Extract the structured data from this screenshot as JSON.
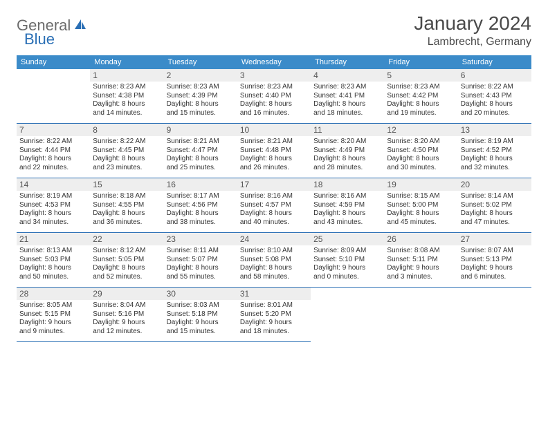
{
  "logo": {
    "part1": "General",
    "part2": "Blue"
  },
  "title": "January 2024",
  "location": "Lambrecht, Germany",
  "colors": {
    "headerBg": "#3b8bc9",
    "headerText": "#ffffff",
    "border": "#2a6fb5",
    "shaded": "#eeeeee",
    "logoGray": "#6b6b6b",
    "logoBlue": "#2a6fb5"
  },
  "weekdays": [
    "Sunday",
    "Monday",
    "Tuesday",
    "Wednesday",
    "Thursday",
    "Friday",
    "Saturday"
  ],
  "weeks": [
    [
      null,
      {
        "n": "1",
        "sr": "Sunrise: 8:23 AM",
        "ss": "Sunset: 4:38 PM",
        "d1": "Daylight: 8 hours",
        "d2": "and 14 minutes."
      },
      {
        "n": "2",
        "sr": "Sunrise: 8:23 AM",
        "ss": "Sunset: 4:39 PM",
        "d1": "Daylight: 8 hours",
        "d2": "and 15 minutes."
      },
      {
        "n": "3",
        "sr": "Sunrise: 8:23 AM",
        "ss": "Sunset: 4:40 PM",
        "d1": "Daylight: 8 hours",
        "d2": "and 16 minutes."
      },
      {
        "n": "4",
        "sr": "Sunrise: 8:23 AM",
        "ss": "Sunset: 4:41 PM",
        "d1": "Daylight: 8 hours",
        "d2": "and 18 minutes."
      },
      {
        "n": "5",
        "sr": "Sunrise: 8:23 AM",
        "ss": "Sunset: 4:42 PM",
        "d1": "Daylight: 8 hours",
        "d2": "and 19 minutes."
      },
      {
        "n": "6",
        "sr": "Sunrise: 8:22 AM",
        "ss": "Sunset: 4:43 PM",
        "d1": "Daylight: 8 hours",
        "d2": "and 20 minutes."
      }
    ],
    [
      {
        "n": "7",
        "sr": "Sunrise: 8:22 AM",
        "ss": "Sunset: 4:44 PM",
        "d1": "Daylight: 8 hours",
        "d2": "and 22 minutes."
      },
      {
        "n": "8",
        "sr": "Sunrise: 8:22 AM",
        "ss": "Sunset: 4:45 PM",
        "d1": "Daylight: 8 hours",
        "d2": "and 23 minutes."
      },
      {
        "n": "9",
        "sr": "Sunrise: 8:21 AM",
        "ss": "Sunset: 4:47 PM",
        "d1": "Daylight: 8 hours",
        "d2": "and 25 minutes."
      },
      {
        "n": "10",
        "sr": "Sunrise: 8:21 AM",
        "ss": "Sunset: 4:48 PM",
        "d1": "Daylight: 8 hours",
        "d2": "and 26 minutes."
      },
      {
        "n": "11",
        "sr": "Sunrise: 8:20 AM",
        "ss": "Sunset: 4:49 PM",
        "d1": "Daylight: 8 hours",
        "d2": "and 28 minutes."
      },
      {
        "n": "12",
        "sr": "Sunrise: 8:20 AM",
        "ss": "Sunset: 4:50 PM",
        "d1": "Daylight: 8 hours",
        "d2": "and 30 minutes."
      },
      {
        "n": "13",
        "sr": "Sunrise: 8:19 AM",
        "ss": "Sunset: 4:52 PM",
        "d1": "Daylight: 8 hours",
        "d2": "and 32 minutes."
      }
    ],
    [
      {
        "n": "14",
        "sr": "Sunrise: 8:19 AM",
        "ss": "Sunset: 4:53 PM",
        "d1": "Daylight: 8 hours",
        "d2": "and 34 minutes."
      },
      {
        "n": "15",
        "sr": "Sunrise: 8:18 AM",
        "ss": "Sunset: 4:55 PM",
        "d1": "Daylight: 8 hours",
        "d2": "and 36 minutes."
      },
      {
        "n": "16",
        "sr": "Sunrise: 8:17 AM",
        "ss": "Sunset: 4:56 PM",
        "d1": "Daylight: 8 hours",
        "d2": "and 38 minutes."
      },
      {
        "n": "17",
        "sr": "Sunrise: 8:16 AM",
        "ss": "Sunset: 4:57 PM",
        "d1": "Daylight: 8 hours",
        "d2": "and 40 minutes."
      },
      {
        "n": "18",
        "sr": "Sunrise: 8:16 AM",
        "ss": "Sunset: 4:59 PM",
        "d1": "Daylight: 8 hours",
        "d2": "and 43 minutes."
      },
      {
        "n": "19",
        "sr": "Sunrise: 8:15 AM",
        "ss": "Sunset: 5:00 PM",
        "d1": "Daylight: 8 hours",
        "d2": "and 45 minutes."
      },
      {
        "n": "20",
        "sr": "Sunrise: 8:14 AM",
        "ss": "Sunset: 5:02 PM",
        "d1": "Daylight: 8 hours",
        "d2": "and 47 minutes."
      }
    ],
    [
      {
        "n": "21",
        "sr": "Sunrise: 8:13 AM",
        "ss": "Sunset: 5:03 PM",
        "d1": "Daylight: 8 hours",
        "d2": "and 50 minutes."
      },
      {
        "n": "22",
        "sr": "Sunrise: 8:12 AM",
        "ss": "Sunset: 5:05 PM",
        "d1": "Daylight: 8 hours",
        "d2": "and 52 minutes."
      },
      {
        "n": "23",
        "sr": "Sunrise: 8:11 AM",
        "ss": "Sunset: 5:07 PM",
        "d1": "Daylight: 8 hours",
        "d2": "and 55 minutes."
      },
      {
        "n": "24",
        "sr": "Sunrise: 8:10 AM",
        "ss": "Sunset: 5:08 PM",
        "d1": "Daylight: 8 hours",
        "d2": "and 58 minutes."
      },
      {
        "n": "25",
        "sr": "Sunrise: 8:09 AM",
        "ss": "Sunset: 5:10 PM",
        "d1": "Daylight: 9 hours",
        "d2": "and 0 minutes."
      },
      {
        "n": "26",
        "sr": "Sunrise: 8:08 AM",
        "ss": "Sunset: 5:11 PM",
        "d1": "Daylight: 9 hours",
        "d2": "and 3 minutes."
      },
      {
        "n": "27",
        "sr": "Sunrise: 8:07 AM",
        "ss": "Sunset: 5:13 PM",
        "d1": "Daylight: 9 hours",
        "d2": "and 6 minutes."
      }
    ],
    [
      {
        "n": "28",
        "sr": "Sunrise: 8:05 AM",
        "ss": "Sunset: 5:15 PM",
        "d1": "Daylight: 9 hours",
        "d2": "and 9 minutes."
      },
      {
        "n": "29",
        "sr": "Sunrise: 8:04 AM",
        "ss": "Sunset: 5:16 PM",
        "d1": "Daylight: 9 hours",
        "d2": "and 12 minutes."
      },
      {
        "n": "30",
        "sr": "Sunrise: 8:03 AM",
        "ss": "Sunset: 5:18 PM",
        "d1": "Daylight: 9 hours",
        "d2": "and 15 minutes."
      },
      {
        "n": "31",
        "sr": "Sunrise: 8:01 AM",
        "ss": "Sunset: 5:20 PM",
        "d1": "Daylight: 9 hours",
        "d2": "and 18 minutes."
      },
      null,
      null,
      null
    ]
  ]
}
